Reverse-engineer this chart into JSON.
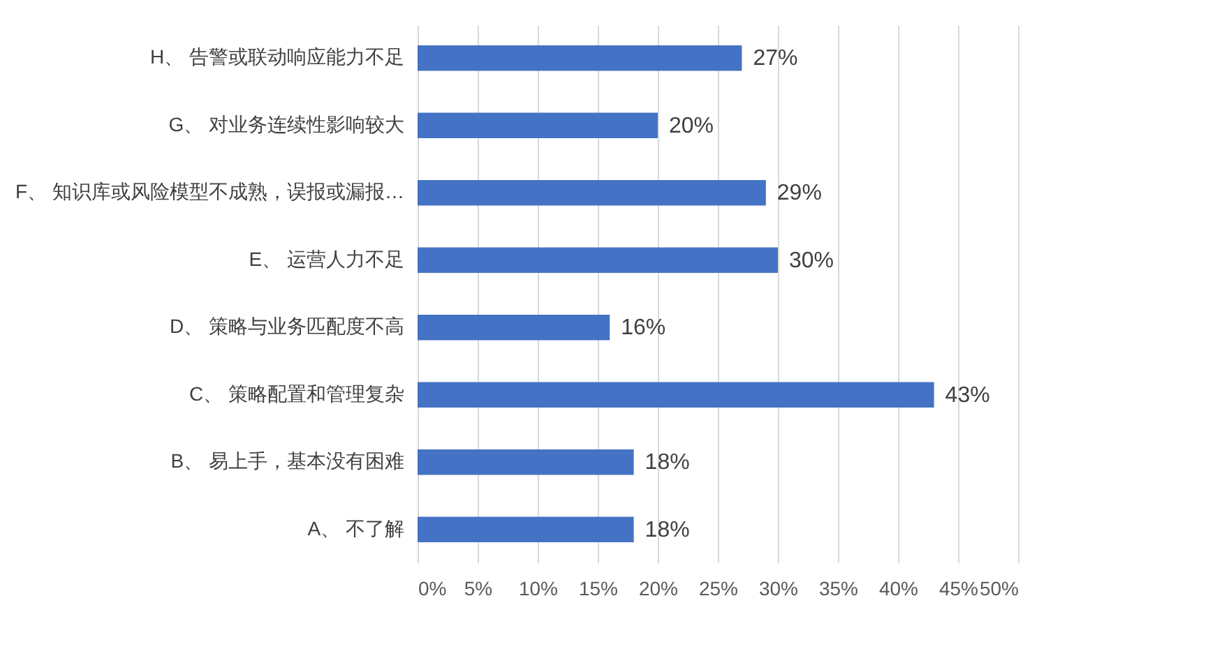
{
  "chart_data": {
    "type": "bar",
    "orientation": "horizontal",
    "categories": [
      "H、 告警或联动响应能力不足",
      "G、 对业务连续性影响较大",
      "F、 知识库或风险模型不成熟，误报或漏报…",
      "E、 运营人力不足",
      "D、 策略与业务匹配度不高",
      "C、 策略配置和管理复杂",
      "B、 易上手，基本没有困难",
      "A、 不了解"
    ],
    "values": [
      27,
      20,
      29,
      30,
      16,
      43,
      18,
      18
    ],
    "value_labels": [
      "27%",
      "20%",
      "29%",
      "30%",
      "16%",
      "43%",
      "18%",
      "18%"
    ],
    "color": "#4472c4",
    "xlim": [
      0,
      50
    ],
    "xticks": [
      {
        "value": 0,
        "label": "0%"
      },
      {
        "value": 5,
        "label": "5%"
      },
      {
        "value": 10,
        "label": "10%"
      },
      {
        "value": 15,
        "label": "15%"
      },
      {
        "value": 20,
        "label": "20%"
      },
      {
        "value": 25,
        "label": "25%"
      },
      {
        "value": 30,
        "label": "30%"
      },
      {
        "value": 35,
        "label": "35%"
      },
      {
        "value": 40,
        "label": "40%"
      },
      {
        "value": 45,
        "label": "45%"
      },
      {
        "value": 50,
        "label": "50%"
      }
    ],
    "grid": "x"
  }
}
